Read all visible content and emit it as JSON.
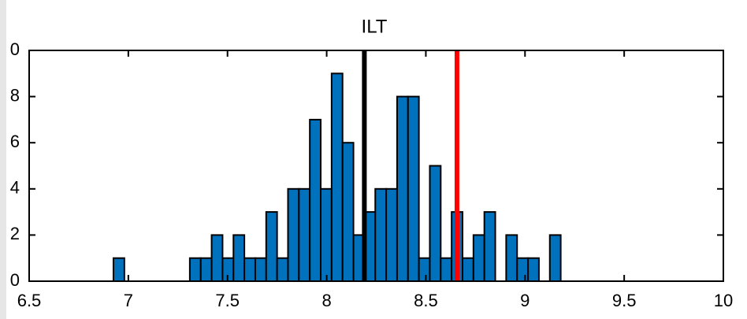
{
  "chart_data": {
    "type": "histogram",
    "title": "ILT",
    "bins": [
      6.925,
      6.98,
      7.035,
      7.09,
      7.145,
      7.2,
      7.255,
      7.31,
      7.365,
      7.42,
      7.475,
      7.53,
      7.585,
      7.64,
      7.695,
      7.75,
      7.805,
      7.86,
      7.915,
      7.97,
      8.025,
      8.08,
      8.135,
      8.19,
      8.245,
      8.3,
      8.355,
      8.41,
      8.465,
      8.52,
      8.575,
      8.63,
      8.685,
      8.74,
      8.795,
      8.85,
      8.905,
      8.96,
      9.015,
      9.07,
      9.125,
      9.18
    ],
    "values": [
      1,
      0,
      0,
      0,
      0,
      0,
      0,
      1,
      1,
      2,
      1,
      2,
      1,
      1,
      3,
      1,
      4,
      4,
      7,
      4,
      9,
      6,
      2,
      3,
      4,
      4,
      8,
      8,
      1,
      5,
      1,
      3,
      1,
      2,
      3,
      0,
      2,
      1,
      1,
      0,
      2
    ],
    "color": "#0072bd",
    "markers": [
      {
        "value": 8.19,
        "color": "#000000"
      },
      {
        "value": 8.657,
        "color": "#ff0000"
      }
    ],
    "xlim": [
      6.5,
      10
    ],
    "xticks": [
      6.5,
      7,
      7.5,
      8,
      8.5,
      9,
      9.5,
      10
    ],
    "ylim": [
      0,
      10
    ],
    "yticks": [
      0,
      2,
      4,
      6,
      8,
      {
        "value": 10,
        "label": "0"
      }
    ]
  }
}
